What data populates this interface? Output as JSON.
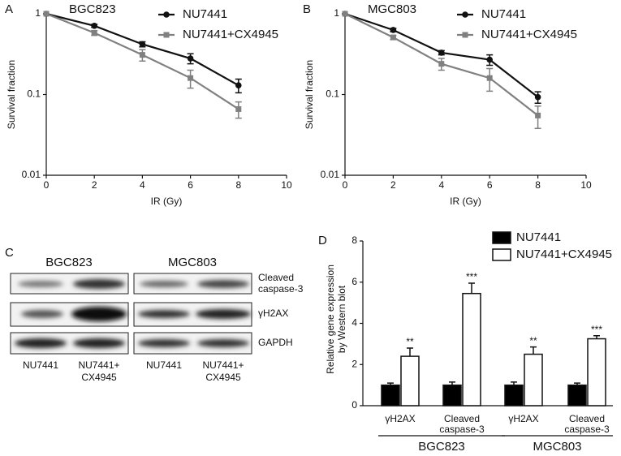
{
  "chart_data": [
    {
      "type": "line",
      "panel": "A",
      "title": "BGC823",
      "x_label": "IR (Gy)",
      "y_label": "Survival fraction",
      "log_y": true,
      "x": [
        0,
        2,
        4,
        6,
        8
      ],
      "xlim": [
        0,
        10
      ],
      "xticks": [
        0,
        2,
        4,
        6,
        8,
        10
      ],
      "ylim": [
        0.01,
        1
      ],
      "yticks": [
        1,
        0.1,
        0.01
      ],
      "legend": "upper right",
      "series": [
        {
          "name": "NU7441",
          "color": "#111111",
          "marker": "circle",
          "values": [
            1,
            0.71,
            0.42,
            0.28,
            0.13
          ],
          "errors": [
            null,
            0.03,
            0.03,
            0.04,
            0.025
          ]
        },
        {
          "name": "NU7441+CX4945",
          "color": "#808080",
          "marker": "square",
          "values": [
            1,
            0.58,
            0.31,
            0.16,
            0.066
          ],
          "errors": [
            null,
            0.04,
            0.05,
            0.04,
            0.015
          ]
        }
      ]
    },
    {
      "type": "line",
      "panel": "B",
      "title": "MGC803",
      "x_label": "IR (Gy)",
      "y_label": "Survival fraction",
      "log_y": true,
      "x": [
        0,
        2,
        4,
        6,
        8
      ],
      "xlim": [
        0,
        10
      ],
      "xticks": [
        0,
        2,
        4,
        6,
        8,
        10
      ],
      "ylim": [
        0.01,
        1
      ],
      "yticks": [
        1,
        0.1,
        0.01
      ],
      "legend": "upper right",
      "series": [
        {
          "name": "NU7441",
          "color": "#111111",
          "marker": "circle",
          "values": [
            1,
            0.63,
            0.33,
            0.27,
            0.093
          ],
          "errors": [
            null,
            0.03,
            0.02,
            0.04,
            0.015
          ]
        },
        {
          "name": "NU7441+CX4945",
          "color": "#808080",
          "marker": "square",
          "values": [
            1,
            0.51,
            0.24,
            0.16,
            0.055
          ],
          "errors": [
            null,
            0.03,
            0.04,
            0.05,
            0.017
          ]
        }
      ]
    },
    {
      "type": "bar",
      "panel": "D",
      "y_label": [
        "Relative gene expression",
        "by Western blot"
      ],
      "categories": [
        [
          "γH2AX"
        ],
        [
          "Cleaved",
          "caspase-3"
        ],
        [
          "γH2AX"
        ],
        [
          "Cleaved",
          "caspase-3"
        ]
      ],
      "groups": [
        "BGC823",
        "MGC803"
      ],
      "ylim": [
        0,
        8
      ],
      "yticks": [
        0,
        2,
        4,
        6,
        8
      ],
      "legend": "top",
      "series": [
        {
          "name": "NU7441",
          "color": "#000000",
          "values": [
            1.0,
            1.0,
            1.0,
            1.0
          ],
          "errors": [
            0.1,
            0.15,
            0.15,
            0.1
          ]
        },
        {
          "name": "NU7441+CX4945",
          "color": "#ffffff",
          "values": [
            2.4,
            5.45,
            2.5,
            3.25
          ],
          "errors": [
            0.4,
            0.5,
            0.35,
            0.15
          ],
          "value_labels": [
            "**",
            "***",
            "**",
            "***"
          ]
        }
      ]
    }
  ],
  "blot": {
    "panel": "C",
    "cell_lines": [
      "BGC823",
      "MGC803"
    ],
    "proteins": [
      [
        "Cleaved",
        "caspase-3"
      ],
      [
        "γH2AX"
      ],
      [
        "GAPDH"
      ]
    ],
    "lanes": [
      [
        "NU7441"
      ],
      [
        "NU7441+",
        "CX4945"
      ]
    ]
  }
}
